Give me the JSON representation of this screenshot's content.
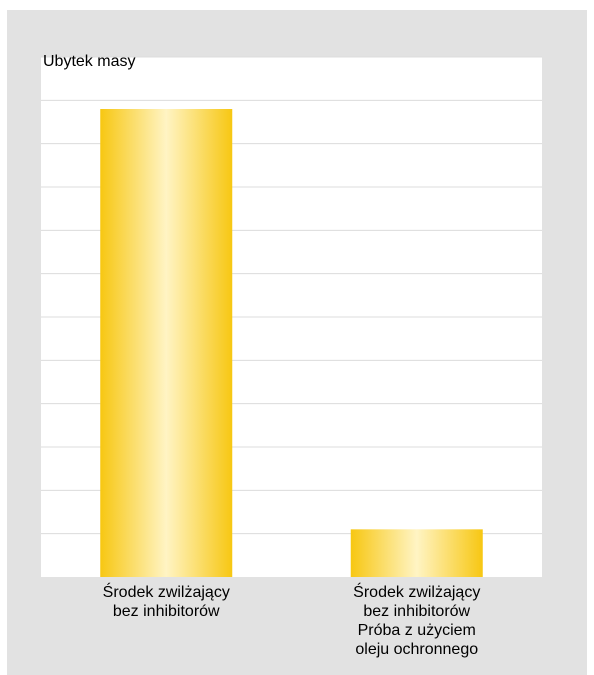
{
  "chart_data": {
    "type": "bar",
    "title": "",
    "xlabel": "",
    "ylabel": "Ubytek masy",
    "categories": [
      "Środek zwilżający\nbez inhibitorów",
      "Środek zwilżający\nbez inhibitorów\nPróba z użyciem\noleju ochronnego"
    ],
    "values": [
      10.8,
      1.1
    ],
    "ylim": [
      0,
      12
    ],
    "grid": true,
    "legend": "none",
    "colors": {
      "bar_edge": "#f7c712",
      "bar_center": "#fff4c4",
      "frame": "#e2e2e2",
      "plot_bg": "#ffffff",
      "grid": "#dcdcdc"
    }
  }
}
